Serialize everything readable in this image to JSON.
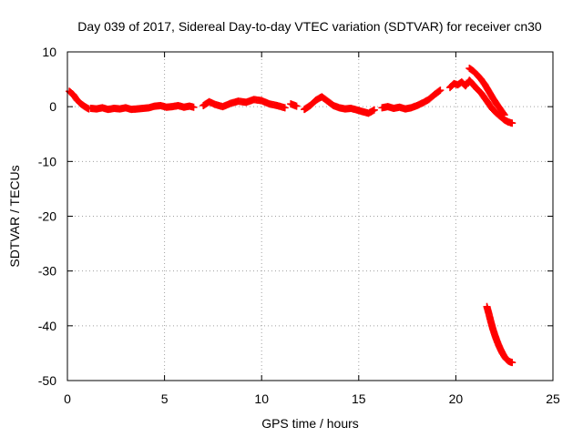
{
  "chart_data": {
    "type": "scatter",
    "title": "Day 039 of 2017, Sidereal Day-to-day VTEC variation (SDTVAR) for receiver cn30",
    "xlabel": "GPS time / hours",
    "ylabel": "SDTVAR / TECUs",
    "xlim": [
      0,
      25
    ],
    "ylim": [
      -50,
      10
    ],
    "xticks": [
      0,
      5,
      10,
      15,
      20,
      25
    ],
    "yticks": [
      10,
      0,
      -10,
      -20,
      -30,
      -40,
      -50
    ],
    "grid": true,
    "marker": "plus",
    "color": "#ff0000",
    "series": [
      {
        "name": "SDTVAR",
        "segments": [
          {
            "x": [
              0.1,
              0.3,
              0.5,
              0.7,
              0.9,
              1.1
            ],
            "y": [
              2.8,
              2.2,
              1.2,
              0.5,
              0.0,
              -0.4
            ]
          },
          {
            "x": [
              1.2,
              1.5,
              1.8,
              2.1,
              2.4,
              2.7,
              3.0,
              3.3,
              3.6,
              3.9,
              4.2,
              4.5,
              4.8,
              5.1,
              5.4,
              5.7,
              6.0,
              6.3,
              6.5
            ],
            "y": [
              -0.3,
              -0.4,
              -0.2,
              -0.5,
              -0.3,
              -0.4,
              -0.2,
              -0.5,
              -0.4,
              -0.3,
              -0.2,
              0.1,
              0.2,
              -0.1,
              0.0,
              0.2,
              -0.1,
              0.1,
              -0.1
            ]
          },
          {
            "x": [
              7.0,
              7.3,
              7.6,
              8.0,
              8.4,
              8.8,
              9.2,
              9.6,
              10.0,
              10.4,
              10.8,
              11.2
            ],
            "y": [
              0.2,
              0.9,
              0.4,
              0.0,
              0.6,
              1.0,
              0.8,
              1.3,
              1.1,
              0.5,
              0.2,
              -0.2
            ]
          },
          {
            "x": [
              11.5,
              11.8
            ],
            "y": [
              0.5,
              0.1
            ]
          },
          {
            "x": [
              12.2,
              12.5,
              12.8,
              13.1,
              13.4,
              13.7,
              14.0,
              14.3,
              14.6,
              14.9,
              15.2,
              15.5,
              15.8
            ],
            "y": [
              -0.5,
              0.2,
              1.2,
              1.8,
              1.0,
              0.2,
              -0.2,
              -0.4,
              -0.3,
              -0.6,
              -0.9,
              -1.2,
              -0.6
            ]
          },
          {
            "x": [
              16.2,
              16.5,
              16.8,
              17.1,
              17.4,
              17.7,
              18.0,
              18.3,
              18.6,
              18.9,
              19.2
            ],
            "y": [
              -0.2,
              0.0,
              -0.3,
              -0.1,
              -0.4,
              -0.2,
              0.2,
              0.7,
              1.3,
              2.2,
              3.0
            ]
          },
          {
            "x": [
              19.7,
              19.9,
              20.1,
              20.3,
              20.5,
              20.7,
              20.9,
              21.1,
              21.3,
              21.5,
              21.7,
              21.9,
              22.1,
              22.3,
              22.5,
              22.7,
              22.9
            ],
            "y": [
              3.5,
              4.2,
              4.0,
              4.5,
              3.8,
              4.8,
              4.0,
              3.2,
              2.5,
              1.5,
              0.5,
              -0.5,
              -1.2,
              -1.8,
              -2.4,
              -2.8,
              -3.0
            ]
          },
          {
            "x": [
              20.7,
              20.9,
              21.1,
              21.3,
              21.5,
              21.7,
              21.9,
              22.1,
              22.3,
              22.5
            ],
            "y": [
              7.0,
              6.5,
              5.8,
              5.0,
              4.0,
              2.8,
              1.6,
              0.5,
              -0.5,
              -1.5
            ]
          },
          {
            "x": [
              21.6,
              21.7,
              21.8,
              21.9,
              22.0,
              22.1,
              22.2,
              22.3,
              22.4,
              22.5,
              22.6,
              22.7,
              22.8,
              22.9
            ],
            "y": [
              -36.5,
              -37.8,
              -39.2,
              -40.5,
              -41.6,
              -42.6,
              -43.5,
              -44.3,
              -45.0,
              -45.6,
              -46.1,
              -46.4,
              -46.6,
              -46.7
            ]
          }
        ]
      }
    ]
  }
}
